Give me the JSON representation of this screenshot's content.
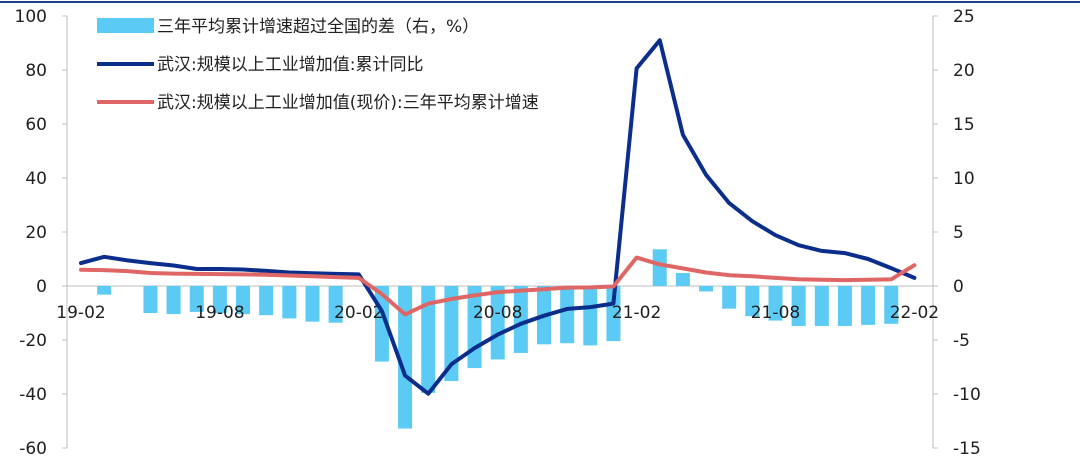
{
  "colors": {
    "bar": "#5BCBF5",
    "line_yoy": "#0B2E8C",
    "line_avg": "#E06666",
    "axis": "#bfbfbf",
    "frame_top": "#1F3F8F"
  },
  "legend": {
    "bar_label": "三年平均累计增速超过全国的差（右，%）",
    "line_yoy_label": "武汉:规模以上工业增加值:累计同比",
    "line_avg_label": "武汉:规模以上工业增加值(现价):三年平均累计增速"
  },
  "chart_data": {
    "type": "bar+line",
    "x_tick_labels": [
      "19-02",
      "19-08",
      "20-02",
      "20-08",
      "21-02",
      "21-08",
      "22-02"
    ],
    "left_axis": {
      "ticks": [
        "100",
        "80",
        "60",
        "40",
        "20",
        "0",
        "-20",
        "-40",
        "-60"
      ],
      "ylim": [
        -60,
        100
      ]
    },
    "right_axis": {
      "ticks": [
        "25",
        "20",
        "15",
        "10",
        "5",
        "0",
        "-5",
        "-10",
        "-15"
      ],
      "ylim": [
        -15,
        25
      ]
    },
    "series": [
      {
        "name": "三年平均累计增速超过全国的差（右，%）",
        "kind": "bar",
        "axis": "right",
        "values": [
          null,
          -0.8,
          null,
          -2.5,
          -2.6,
          -2.4,
          -2.5,
          -2.6,
          -2.7,
          -3.0,
          -3.3,
          -3.4,
          null,
          -7.0,
          -13.2,
          -9.9,
          -8.8,
          -7.6,
          -6.8,
          -6.2,
          -5.4,
          -5.3,
          -5.5,
          -5.1,
          null,
          3.4,
          1.2,
          -0.5,
          -2.1,
          -2.8,
          -3.2,
          -3.7,
          -3.7,
          -3.7,
          -3.6,
          -3.5,
          null
        ]
      },
      {
        "name": "武汉:规模以上工业增加值:累计同比",
        "kind": "line",
        "axis": "left",
        "values": [
          8.5,
          10.8,
          9.5,
          8.5,
          7.6,
          6.3,
          6.3,
          6.1,
          5.6,
          5.0,
          4.7,
          4.5,
          4.3,
          -9.3,
          -33.2,
          -39.9,
          -29.0,
          -23.0,
          -18.0,
          -14.0,
          -11.0,
          -8.5,
          -7.8,
          -6.5,
          80.6,
          91.0,
          56.0,
          41.2,
          30.7,
          24.0,
          18.8,
          15.1,
          13.0,
          12.2,
          10.0,
          6.6,
          3.0
        ]
      },
      {
        "name": "武汉:规模以上工业增加值(现价):三年平均累计增速",
        "kind": "line",
        "axis": "left",
        "values": [
          6.0,
          5.9,
          5.5,
          4.8,
          4.6,
          4.5,
          4.4,
          4.3,
          4.2,
          3.9,
          3.6,
          3.3,
          3.0,
          -3.0,
          -10.5,
          -6.5,
          -4.8,
          -3.5,
          -2.3,
          -1.7,
          -1.2,
          -0.6,
          -0.5,
          -0.2,
          10.5,
          8.0,
          6.5,
          5.0,
          4.0,
          3.6,
          3.0,
          2.5,
          2.3,
          2.2,
          2.3,
          2.5,
          7.7
        ]
      }
    ]
  }
}
